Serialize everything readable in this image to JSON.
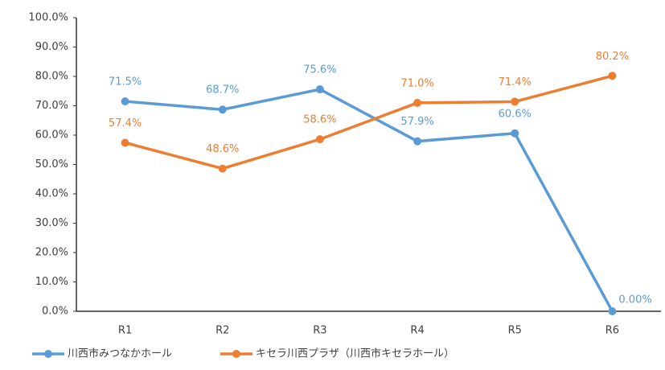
{
  "chart_data": {
    "type": "line",
    "categories": [
      "R1",
      "R2",
      "R3",
      "R4",
      "R5",
      "R6"
    ],
    "series": [
      {
        "name": "川西市みつなかホール",
        "color": "#5b9bd5",
        "values": [
          71.5,
          68.7,
          75.6,
          57.9,
          60.6,
          0
        ],
        "value_labels": [
          "71.5%",
          "68.7%",
          "75.6%",
          "57.9%",
          "60.6%",
          "0.00%"
        ]
      },
      {
        "name": "キセラ川西プラザ（川西市キセラホール）",
        "color": "#ed7d31",
        "values": [
          57.4,
          48.6,
          58.6,
          71.0,
          71.4,
          80.2
        ],
        "value_labels": [
          "57.4%",
          "48.6%",
          "58.6%",
          "71.0%",
          "71.4%",
          "80.2%"
        ]
      }
    ],
    "ylim": [
      0,
      100
    ],
    "yticks": [
      {
        "value": 0,
        "label": "0.0%"
      },
      {
        "value": 10,
        "label": "10.0%"
      },
      {
        "value": 20,
        "label": "20.0%"
      },
      {
        "value": 30,
        "label": "30.0%"
      },
      {
        "value": 40,
        "label": "40.0%"
      },
      {
        "value": 50,
        "label": "50.0%"
      },
      {
        "value": 60,
        "label": "60.0%"
      },
      {
        "value": 70,
        "label": "70.0%"
      },
      {
        "value": 80,
        "label": "80.0%"
      },
      {
        "value": 90,
        "label": "90.0%"
      },
      {
        "value": 100,
        "label": "100.0%"
      }
    ],
    "grid": false,
    "legend": "bottom"
  }
}
